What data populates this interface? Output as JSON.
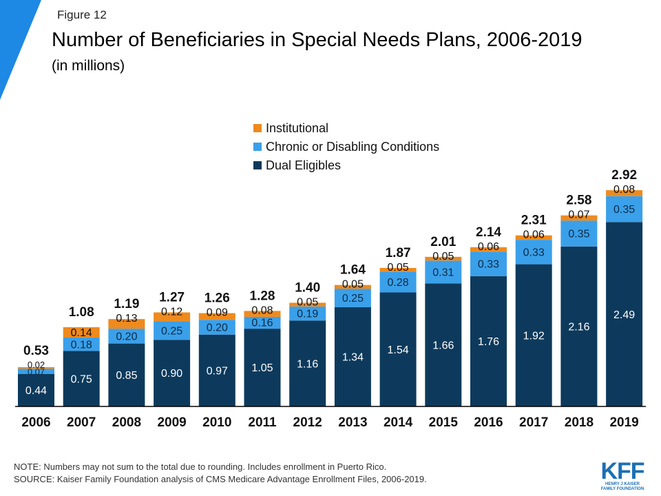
{
  "header": {
    "figure_label": "Figure 12",
    "title": "Number of Beneficiaries in Special Needs Plans, 2006-2019",
    "subtitle": "(in millions)"
  },
  "colors": {
    "dual": "#0d3a5c",
    "chronic": "#3aa0ea",
    "institutional": "#ee8a1e",
    "corner": "#1e88e5",
    "axis": "#000000"
  },
  "chart_data": {
    "type": "bar",
    "stacked": true,
    "title": "Number of Beneficiaries in Special Needs Plans, 2006-2019",
    "ylabel": "(in millions)",
    "xlabel": "",
    "ylim": [
      0,
      3.1
    ],
    "legend_position": "top-center",
    "categories": [
      "2006",
      "2007",
      "2008",
      "2009",
      "2010",
      "2011",
      "2012",
      "2013",
      "2014",
      "2015",
      "2016",
      "2017",
      "2018",
      "2019"
    ],
    "series": [
      {
        "name": "Dual Eligibles",
        "key": "dual",
        "values": [
          0.44,
          0.75,
          0.85,
          0.9,
          0.97,
          1.05,
          1.16,
          1.34,
          1.54,
          1.66,
          1.76,
          1.92,
          2.16,
          2.49
        ],
        "labels": [
          "0.44",
          "0.75",
          "0.85",
          "0.90",
          "0.97",
          "1.05",
          "1.16",
          "1.34",
          "1.54",
          "1.66",
          "1.76",
          "1.92",
          "2.16",
          "2.49"
        ]
      },
      {
        "name": "Chronic or Disabling Conditions",
        "key": "chronic",
        "values": [
          0.07,
          0.18,
          0.2,
          0.25,
          0.2,
          0.16,
          0.19,
          0.25,
          0.28,
          0.31,
          0.33,
          0.33,
          0.35,
          0.35
        ],
        "labels": [
          "0.07",
          "0.18",
          "0.20",
          "0.25",
          "0.20",
          "0.16",
          "0.19",
          "0.25",
          "0.28",
          "0.31",
          "0.33",
          "0.33",
          "0.35",
          "0.35"
        ]
      },
      {
        "name": "Institutional",
        "key": "institutional",
        "values": [
          0.02,
          0.14,
          0.13,
          0.12,
          0.09,
          0.08,
          0.05,
          0.05,
          0.05,
          0.05,
          0.06,
          0.06,
          0.07,
          0.08
        ],
        "labels": [
          "0.02",
          "0.14",
          "0.13",
          "0.12",
          "0.09",
          "0.08",
          "0.05",
          "0.05",
          "0.05",
          "0.05",
          "0.06",
          "0.06",
          "0.07",
          "0.08"
        ]
      }
    ],
    "totals": [
      0.53,
      1.08,
      1.19,
      1.27,
      1.26,
      1.28,
      1.4,
      1.64,
      1.87,
      2.01,
      2.14,
      2.31,
      2.58,
      2.92
    ],
    "total_labels": [
      "0.53",
      "1.08",
      "1.19",
      "1.27",
      "1.26",
      "1.28",
      "1.40",
      "1.64",
      "1.87",
      "2.01",
      "2.14",
      "2.31",
      "2.58",
      "2.92"
    ],
    "legend": [
      "Institutional",
      "Chronic or Disabling Conditions",
      "Dual Eligibles"
    ]
  },
  "footer": {
    "note": "NOTE: Numbers may not sum to the total due to rounding. Includes enrollment in Puerto Rico.",
    "source": "SOURCE: Kaiser Family Foundation analysis of CMS Medicare Advantage Enrollment Files, 2006-2019."
  },
  "logo": {
    "mark": "KFF",
    "line1": "HENRY J KAISER",
    "line2": "FAMILY FOUNDATION"
  }
}
